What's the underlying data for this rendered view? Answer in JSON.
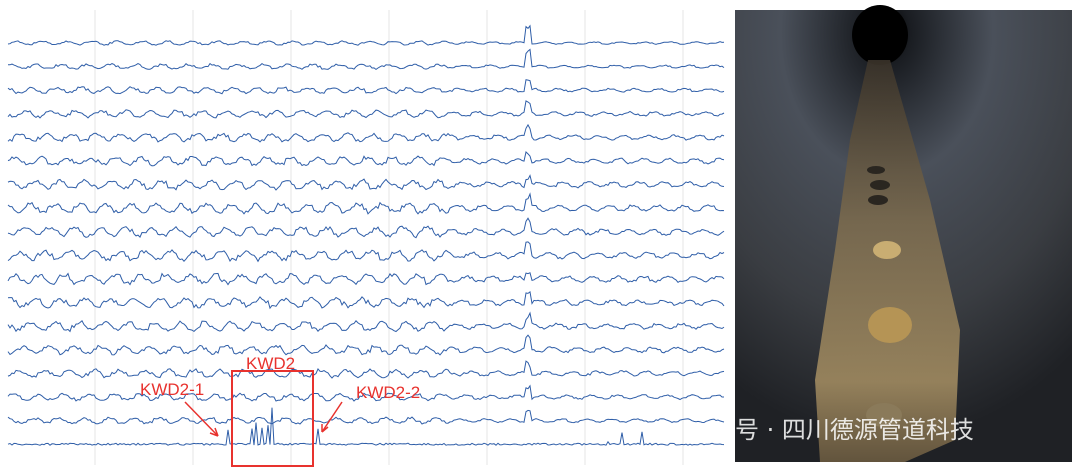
{
  "annotations": [
    {
      "label": "KWD2"
    },
    {
      "label": "KWD2-1"
    },
    {
      "label": "KWD2-2"
    }
  ],
  "watermark": {
    "text": "号 · 四川德源管道科技"
  }
}
